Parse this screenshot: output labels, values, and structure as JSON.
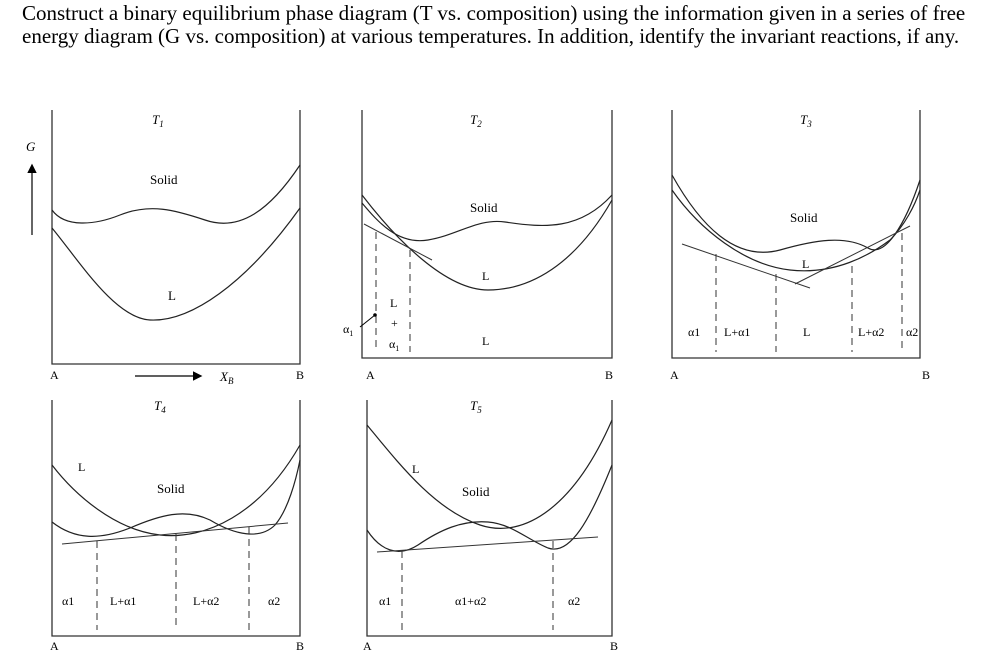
{
  "question": "Construct a binary equilibrium phase diagram (T vs. composition) using the information given in a series of free energy diagram (G vs. composition) at various temperatures. In addition, identify the invariant reactions, if any.",
  "axis": {
    "g_label": "G",
    "x_label": "X",
    "x_sub": "B",
    "left_end": "A",
    "right_end": "B"
  },
  "panels": {
    "t1": {
      "temp": "T",
      "temp_sub": "1",
      "solid": "Solid",
      "liquid": "L",
      "end_a": "A",
      "end_b": "B"
    },
    "t2": {
      "temp": "T",
      "temp_sub": "2",
      "solid": "Solid",
      "liquid_curve": "L",
      "end_a": "A",
      "end_b": "B",
      "region_alpha1": "α",
      "region_alpha1_sub": "1",
      "two_phase_L": "L",
      "two_phase_plus": "+",
      "two_phase_alpha": "α",
      "two_phase_alpha_sub": "1",
      "region_liquid": "L"
    },
    "t3": {
      "temp": "T",
      "temp_sub": "3",
      "solid": "Solid",
      "liquid_curve": "L",
      "end_a": "A",
      "end_b": "B",
      "regions": [
        "α1",
        "L+α1",
        "L",
        "L+α2",
        "α2"
      ]
    },
    "t4": {
      "temp": "T",
      "temp_sub": "4",
      "solid": "Solid",
      "liquid_curve": "L",
      "end_a": "A",
      "end_b": "B",
      "regions": [
        "α1",
        "L+α1",
        "L+α2",
        "α2"
      ]
    },
    "t5": {
      "temp": "T",
      "temp_sub": "5",
      "solid": "Solid",
      "liquid_curve": "L",
      "end_a": "A",
      "end_b": "B",
      "regions": [
        "α1",
        "α1+α2",
        "α2"
      ]
    }
  }
}
